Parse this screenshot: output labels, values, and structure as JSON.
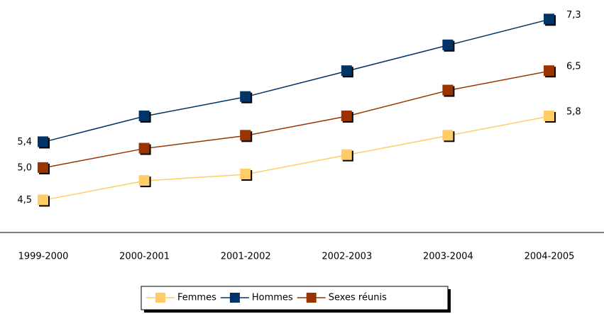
{
  "chart_data": {
    "type": "line",
    "categories": [
      "1999-2000",
      "2000-2001",
      "2001-2002",
      "2002-2003",
      "2003-2004",
      "2004-2005"
    ],
    "series": [
      {
        "name": "Femmes",
        "color": "#ffcc66",
        "values": [
          4.5,
          4.8,
          4.9,
          5.2,
          5.5,
          5.8
        ],
        "value_labels": [
          "4,5",
          null,
          null,
          null,
          null,
          "5,8"
        ]
      },
      {
        "name": "Hommes",
        "color": "#003366",
        "values": [
          5.4,
          5.8,
          6.1,
          6.5,
          6.9,
          7.3
        ],
        "value_labels": [
          "5,4",
          null,
          null,
          null,
          null,
          "7,3"
        ]
      },
      {
        "name": "Sexes réunis",
        "color": "#993300",
        "values": [
          5.0,
          5.3,
          5.5,
          5.8,
          6.2,
          6.5
        ],
        "value_labels": [
          "5,0",
          null,
          null,
          null,
          null,
          "6,5"
        ]
      }
    ],
    "ylim": [
      4,
      7.6
    ]
  }
}
